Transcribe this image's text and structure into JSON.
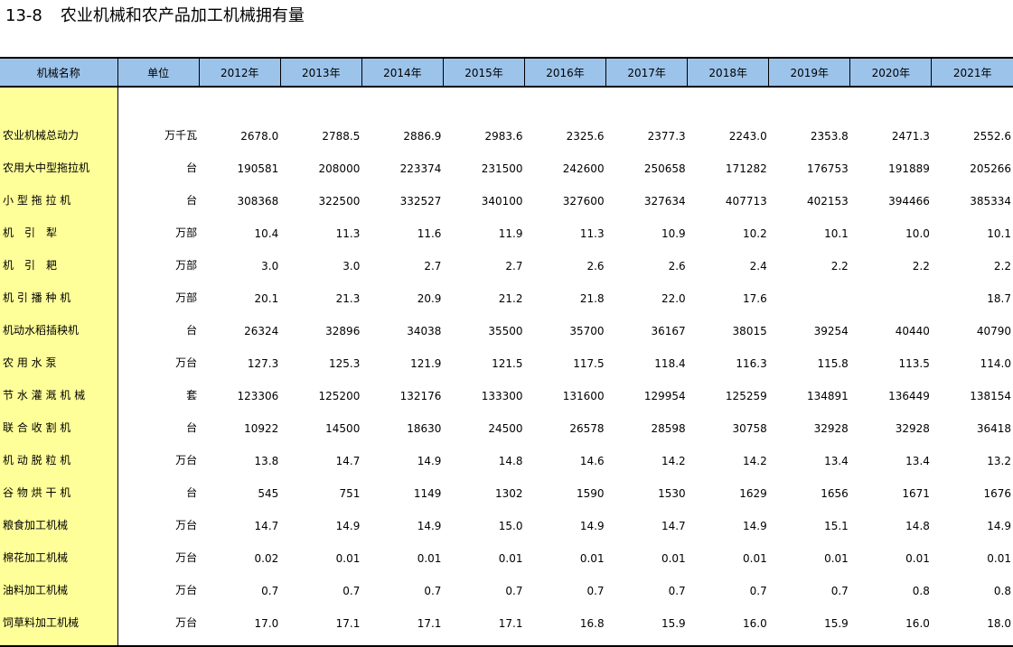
{
  "title": {
    "number": "13-8",
    "text": "农业机械和农产品加工机械拥有量"
  },
  "table": {
    "headers": [
      "机械名称",
      "单位",
      "2012年",
      "2013年",
      "2014年",
      "2015年",
      "2016年",
      "2017年",
      "2018年",
      "2019年",
      "2020年",
      "2021年"
    ],
    "rows": [
      {
        "name": "农业机械总动力",
        "unit": "万千瓦",
        "values": [
          "2678.0",
          "2788.5",
          "2886.9",
          "2983.6",
          "2325.6",
          "2377.3",
          "2243.0",
          "2353.8",
          "2471.3",
          "2552.6"
        ]
      },
      {
        "name": "农用大中型拖拉机",
        "unit": "台",
        "values": [
          "190581",
          "208000",
          "223374",
          "231500",
          "242600",
          "250658",
          "171282",
          "176753",
          "191889",
          "205266"
        ]
      },
      {
        "name": "小 型 拖 拉 机",
        "unit": "台",
        "values": [
          "308368",
          "322500",
          "332527",
          "340100",
          "327600",
          "327634",
          "407713",
          "402153",
          "394466",
          "385334"
        ]
      },
      {
        "name": "机　引　犁",
        "unit": "万部",
        "values": [
          "10.4",
          "11.3",
          "11.6",
          "11.9",
          "11.3",
          "10.9",
          "10.2",
          "10.1",
          "10.0",
          "10.1"
        ]
      },
      {
        "name": "机　引　耙",
        "unit": "万部",
        "values": [
          "3.0",
          "3.0",
          "2.7",
          "2.7",
          "2.6",
          "2.6",
          "2.4",
          "2.2",
          "2.2",
          "2.2"
        ]
      },
      {
        "name": "机 引 播 种 机",
        "unit": "万部",
        "values": [
          "20.1",
          "21.3",
          "20.9",
          "21.2",
          "21.8",
          "22.0",
          "17.6",
          "",
          "",
          "18.7"
        ]
      },
      {
        "name": "机动水稻插秧机",
        "unit": "台",
        "values": [
          "26324",
          "32896",
          "34038",
          "35500",
          "35700",
          "36167",
          "38015",
          "39254",
          "40440",
          "40790"
        ]
      },
      {
        "name": "农 用 水 泵",
        "unit": "万台",
        "values": [
          "127.3",
          "125.3",
          "121.9",
          "121.5",
          "117.5",
          "118.4",
          "116.3",
          "115.8",
          "113.5",
          "114.0"
        ]
      },
      {
        "name": "节 水 灌 溉 机 械",
        "unit": "套",
        "values": [
          "123306",
          "125200",
          "132176",
          "133300",
          "131600",
          "129954",
          "125259",
          "134891",
          "136449",
          "138154"
        ]
      },
      {
        "name": "联 合 收 割 机",
        "unit": "台",
        "values": [
          "10922",
          "14500",
          "18630",
          "24500",
          "26578",
          "28598",
          "30758",
          "32928",
          "32928",
          "36418"
        ]
      },
      {
        "name": "机 动 脱 粒 机",
        "unit": "万台",
        "values": [
          "13.8",
          "14.7",
          "14.9",
          "14.8",
          "14.6",
          "14.2",
          "14.2",
          "13.4",
          "13.4",
          "13.2"
        ]
      },
      {
        "name": "谷 物 烘 干 机",
        "unit": "台",
        "values": [
          "545",
          "751",
          "1149",
          "1302",
          "1590",
          "1530",
          "1629",
          "1656",
          "1671",
          "1676"
        ]
      },
      {
        "name": "粮食加工机械",
        "unit": "万台",
        "values": [
          "14.7",
          "14.9",
          "14.9",
          "15.0",
          "14.9",
          "14.7",
          "14.9",
          "15.1",
          "14.8",
          "14.9"
        ]
      },
      {
        "name": "棉花加工机械",
        "unit": "万台",
        "values": [
          "0.02",
          "0.01",
          "0.01",
          "0.01",
          "0.01",
          "0.01",
          "0.01",
          "0.01",
          "0.01",
          "0.01"
        ]
      },
      {
        "name": "油料加工机械",
        "unit": "万台",
        "values": [
          "0.7",
          "0.7",
          "0.7",
          "0.7",
          "0.7",
          "0.7",
          "0.7",
          "0.7",
          "0.8",
          "0.8"
        ]
      },
      {
        "name": "饲草料加工机械",
        "unit": "万台",
        "values": [
          "17.0",
          "17.1",
          "17.1",
          "17.1",
          "16.8",
          "15.9",
          "16.0",
          "15.9",
          "16.0",
          "18.0"
        ]
      }
    ]
  },
  "colors": {
    "header_bg": "#9cc3ea",
    "name_col_bg": "#ffff99"
  }
}
